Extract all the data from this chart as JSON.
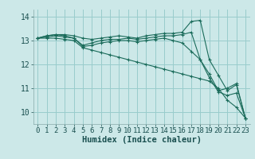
{
  "xlabel": "Humidex (Indice chaleur)",
  "bg_color": "#cce8e8",
  "grid_color": "#99cccc",
  "line_color": "#1a6b5a",
  "xlim": [
    -0.5,
    23.5
  ],
  "ylim": [
    9.5,
    14.3
  ],
  "yticks": [
    10,
    11,
    12,
    13,
    14
  ],
  "xticks": [
    0,
    1,
    2,
    3,
    4,
    5,
    6,
    7,
    8,
    9,
    10,
    11,
    12,
    13,
    14,
    15,
    16,
    17,
    18,
    19,
    20,
    21,
    22,
    23
  ],
  "line1_x": [
    0,
    1,
    2,
    3,
    4,
    5,
    6,
    7,
    8,
    9,
    10,
    11,
    12,
    13,
    14,
    15,
    16,
    17,
    18,
    19,
    20,
    21,
    22,
    23
  ],
  "line1_y": [
    13.1,
    13.2,
    13.25,
    13.25,
    13.2,
    13.1,
    13.05,
    13.1,
    13.15,
    13.2,
    13.15,
    13.1,
    13.2,
    13.25,
    13.3,
    13.3,
    13.35,
    13.8,
    13.85,
    12.2,
    11.55,
    10.9,
    11.15,
    9.75
  ],
  "line2_x": [
    0,
    1,
    2,
    3,
    4,
    5,
    6,
    7,
    8,
    9,
    10,
    11,
    12,
    13,
    14,
    15,
    16,
    17,
    18,
    19,
    20,
    21,
    22,
    23
  ],
  "line2_y": [
    13.1,
    13.2,
    13.25,
    13.2,
    13.1,
    12.8,
    12.9,
    13.0,
    13.05,
    13.05,
    13.1,
    13.05,
    13.1,
    13.15,
    13.2,
    13.2,
    13.25,
    13.35,
    12.2,
    11.6,
    10.9,
    11.0,
    11.2,
    9.75
  ],
  "line3_x": [
    0,
    1,
    2,
    3,
    4,
    5,
    6,
    7,
    8,
    9,
    10,
    11,
    12,
    13,
    14,
    15,
    16,
    17,
    18,
    19,
    20,
    21,
    22,
    23
  ],
  "line3_y": [
    13.1,
    13.15,
    13.2,
    13.15,
    13.1,
    12.75,
    12.8,
    12.9,
    12.95,
    13.0,
    13.0,
    12.95,
    13.0,
    13.05,
    13.1,
    13.0,
    12.9,
    12.55,
    12.2,
    11.45,
    10.85,
    10.7,
    10.8,
    9.75
  ],
  "line4_x": [
    0,
    1,
    2,
    3,
    4,
    5,
    6,
    7,
    8,
    9,
    10,
    11,
    12,
    13,
    14,
    15,
    16,
    17,
    18,
    19,
    20,
    21,
    22,
    23
  ],
  "line4_y": [
    13.1,
    13.1,
    13.1,
    13.05,
    13.0,
    12.7,
    12.6,
    12.5,
    12.4,
    12.3,
    12.2,
    12.1,
    12.0,
    11.9,
    11.8,
    11.7,
    11.6,
    11.5,
    11.4,
    11.3,
    11.0,
    10.5,
    10.2,
    9.75
  ],
  "tick_fontsize": 6.5,
  "xlabel_fontsize": 7.5
}
